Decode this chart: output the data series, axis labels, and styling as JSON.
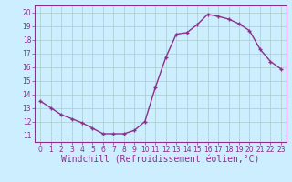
{
  "x": [
    0,
    1,
    2,
    3,
    4,
    5,
    6,
    7,
    8,
    9,
    10,
    11,
    12,
    13,
    14,
    15,
    16,
    17,
    18,
    19,
    20,
    21,
    22,
    23
  ],
  "y": [
    13.5,
    13.0,
    12.5,
    12.2,
    11.9,
    11.5,
    11.1,
    11.1,
    11.1,
    11.35,
    12.0,
    14.5,
    16.7,
    18.4,
    18.5,
    19.1,
    19.85,
    19.7,
    19.5,
    19.15,
    18.65,
    17.3,
    16.4,
    15.85
  ],
  "line_color": "#8B2F8B",
  "marker_color": "#8B2F8B",
  "bg_color": "#cceeff",
  "grid_color": "#aacccc",
  "xlabel": "Windchill (Refroidissement éolien,°C)",
  "xlabel_color": "#8B2F8B",
  "ylim": [
    10.5,
    20.5
  ],
  "xlim": [
    -0.5,
    23.5
  ],
  "yticks": [
    11,
    12,
    13,
    14,
    15,
    16,
    17,
    18,
    19,
    20
  ],
  "xticks": [
    0,
    1,
    2,
    3,
    4,
    5,
    6,
    7,
    8,
    9,
    10,
    11,
    12,
    13,
    14,
    15,
    16,
    17,
    18,
    19,
    20,
    21,
    22,
    23
  ],
  "tick_color": "#8B2F8B",
  "tick_fontsize": 5.5,
  "xlabel_fontsize": 7.0,
  "linewidth": 1.0,
  "markersize": 3.5
}
